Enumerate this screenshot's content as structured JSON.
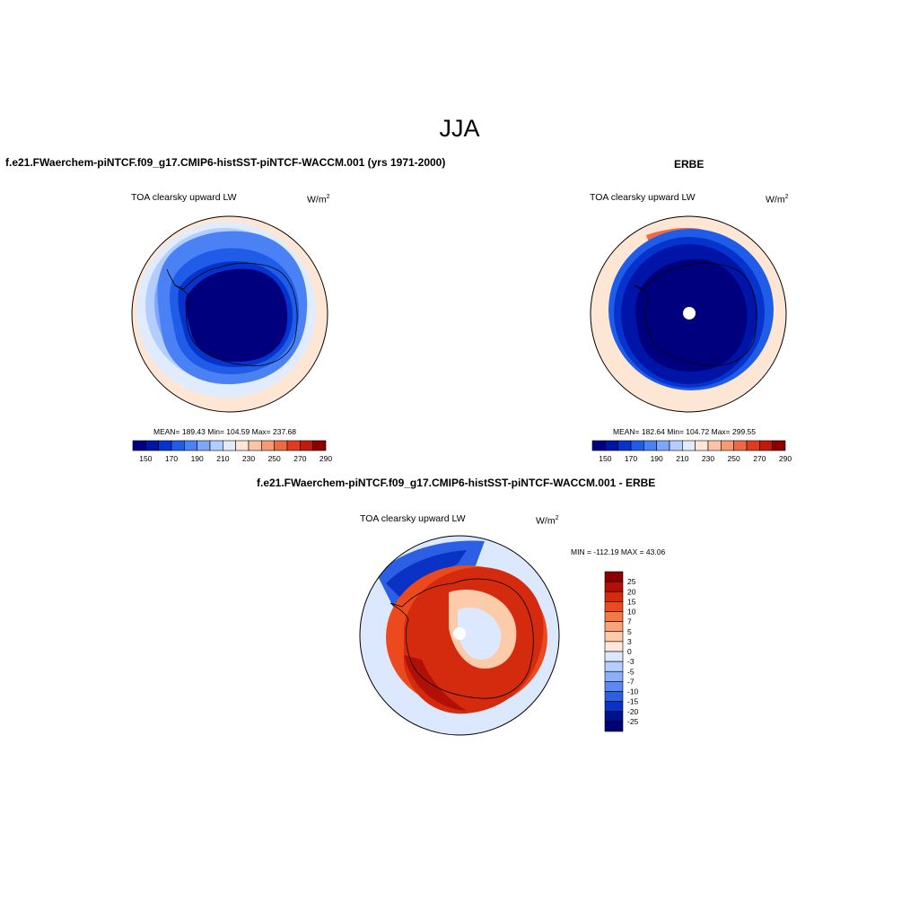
{
  "figure": {
    "title": "JJA"
  },
  "panels": [
    {
      "id": "model",
      "title": "f.e21.FWaerchem-piNTCF.f09_g17.CMIP6-histSST-piNTCF-WACCM.001 (yrs 1971-2000)",
      "variable": "TOA clearsky upward LW",
      "units_base": "W/m",
      "units_exp": "2",
      "stats": "MEAN= 189.43  Min= 104.59  Max= 237.68",
      "colorbar_ticks": [
        "150",
        "170",
        "190",
        "210",
        "230",
        "250",
        "270",
        "290"
      ]
    },
    {
      "id": "obs",
      "title": "ERBE",
      "variable": "TOA clearsky upward LW",
      "units_base": "W/m",
      "units_exp": "2",
      "stats": "MEAN= 182.64  Min= 104.72  Max= 299.55",
      "colorbar_ticks": [
        "150",
        "170",
        "190",
        "210",
        "230",
        "250",
        "270",
        "290"
      ]
    },
    {
      "id": "diff",
      "title": "f.e21.FWaerchem-piNTCF.f09_g17.CMIP6-histSST-piNTCF-WACCM.001 - ERBE",
      "variable": "TOA clearsky upward LW",
      "units_base": "W/m",
      "units_exp": "2",
      "stats": "MIN = -112.19 MAX =  43.06",
      "colorbar_ticks": [
        "25",
        "20",
        "15",
        "10",
        "7",
        "5",
        "3",
        "0",
        "-3",
        "-5",
        "-7",
        "-10",
        "-15",
        "-20",
        "-25"
      ]
    }
  ],
  "colors": {
    "abs_scale": [
      "#00007f",
      "#0014a8",
      "#0533cc",
      "#1f5ce8",
      "#4a82f5",
      "#7ea7fb",
      "#b3cdfc",
      "#e0ecfd",
      "#fde6d4",
      "#fbc4a6",
      "#f59a72",
      "#ec6a44",
      "#e03b1f",
      "#bf1a0a",
      "#8c0000"
    ],
    "diff_scale": [
      "#8c0000",
      "#b01006",
      "#d42a0d",
      "#ec4a1e",
      "#f37a44",
      "#f8a478",
      "#fccbaa",
      "#fde9dc",
      "#dbe8fd",
      "#b5cdfb",
      "#8baff8",
      "#5c89f2",
      "#2d5fe4",
      "#0a33c6",
      "#00118f",
      "#000078"
    ]
  }
}
